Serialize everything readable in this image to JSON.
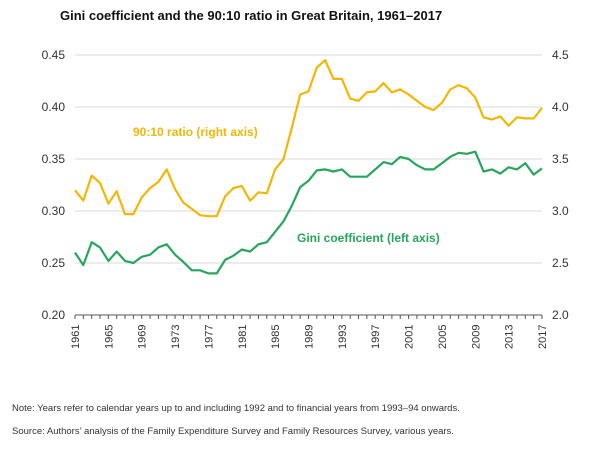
{
  "chart_data": {
    "type": "line",
    "title": "Gini coefficient and the 90:10 ratio in Great Britain, 1961–2017",
    "x": [
      1961,
      1962,
      1963,
      1964,
      1965,
      1966,
      1967,
      1968,
      1969,
      1970,
      1971,
      1972,
      1973,
      1974,
      1975,
      1976,
      1977,
      1978,
      1979,
      1980,
      1981,
      1982,
      1983,
      1984,
      1985,
      1986,
      1987,
      1988,
      1989,
      1990,
      1991,
      1992,
      1993,
      1994,
      1995,
      1996,
      1997,
      1998,
      1999,
      2000,
      2001,
      2002,
      2003,
      2004,
      2005,
      2006,
      2007,
      2008,
      2009,
      2010,
      2011,
      2012,
      2013,
      2014,
      2015,
      2016,
      2017
    ],
    "x_tick_labels": [
      "1961",
      "1965",
      "1969",
      "1973",
      "1977",
      "1981",
      "1985",
      "1989",
      "1993",
      "1997",
      "2001",
      "2005",
      "2009",
      "2013",
      "2017"
    ],
    "y_left": {
      "label": "Gini coefficient",
      "range": [
        0.2,
        0.45
      ],
      "ticks": [
        "0.20",
        "0.25",
        "0.30",
        "0.35",
        "0.40",
        "0.45"
      ]
    },
    "y_right": {
      "label": "90:10 ratio",
      "range": [
        2.0,
        4.5
      ],
      "ticks": [
        "2.0",
        "2.5",
        "3.0",
        "3.5",
        "4.0",
        "4.5"
      ]
    },
    "grid": true,
    "series": [
      {
        "name": "90:10 ratio (right axis)",
        "axis": "right",
        "color": "#f2b705",
        "values": [
          3.2,
          3.1,
          3.34,
          3.27,
          3.07,
          3.19,
          2.97,
          2.97,
          3.13,
          3.22,
          3.28,
          3.4,
          3.21,
          3.08,
          3.02,
          2.96,
          2.95,
          2.95,
          3.14,
          3.22,
          3.24,
          3.1,
          3.18,
          3.17,
          3.4,
          3.5,
          3.8,
          4.12,
          4.15,
          4.38,
          4.45,
          4.27,
          4.27,
          4.08,
          4.06,
          4.14,
          4.15,
          4.23,
          4.14,
          4.17,
          4.12,
          4.06,
          4.0,
          3.97,
          4.04,
          4.17,
          4.21,
          4.18,
          4.09,
          3.9,
          3.88,
          3.91,
          3.82,
          3.9,
          3.89,
          3.89,
          3.99
        ]
      },
      {
        "name": "Gini coefficient (left axis)",
        "axis": "left",
        "color": "#26a65b",
        "values": [
          0.26,
          0.248,
          0.27,
          0.265,
          0.252,
          0.261,
          0.252,
          0.25,
          0.256,
          0.258,
          0.265,
          0.268,
          0.258,
          0.251,
          0.243,
          0.243,
          0.24,
          0.24,
          0.253,
          0.257,
          0.263,
          0.261,
          0.268,
          0.27,
          0.28,
          0.29,
          0.305,
          0.323,
          0.329,
          0.339,
          0.34,
          0.338,
          0.34,
          0.333,
          0.333,
          0.333,
          0.34,
          0.347,
          0.345,
          0.352,
          0.35,
          0.344,
          0.34,
          0.34,
          0.346,
          0.352,
          0.356,
          0.355,
          0.357,
          0.338,
          0.34,
          0.336,
          0.342,
          0.34,
          0.346,
          0.335,
          0.341
        ]
      }
    ],
    "annotations": {
      "ratio_label": "90:10 ratio (right axis)",
      "gini_label": "Gini coefficient (left axis)"
    }
  },
  "notes": {
    "note1": "Note: Years refer to calendar years up to and including 1992 and to financial years from 1993–94 onwards.",
    "note2": "Source: Authors’ analysis of the Family Expenditure Survey and Family Resources Survey, various years."
  }
}
